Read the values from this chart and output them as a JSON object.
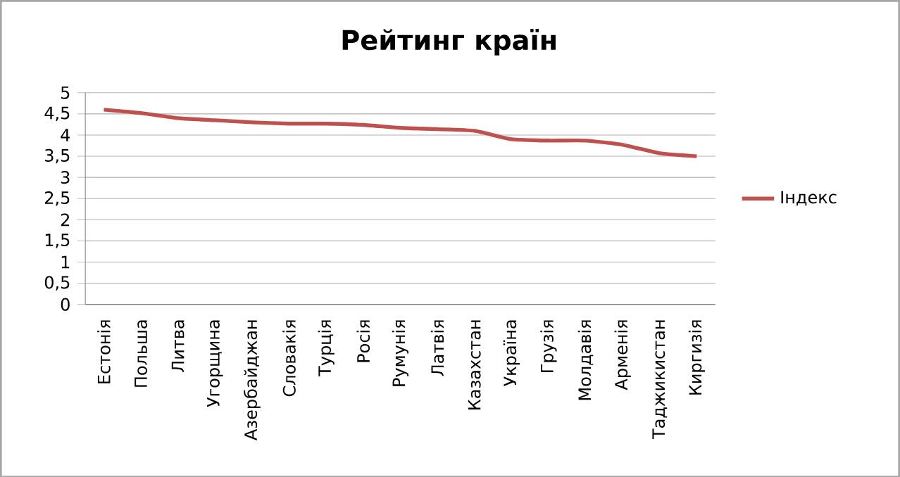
{
  "chart_data": {
    "type": "line",
    "title": "Рейтинг країн",
    "categories": [
      "Естонія",
      "Польша",
      "Литва",
      "Угорщина",
      "Азербайджан",
      "Словакія",
      "Турція",
      "Росія",
      "Румунія",
      "Латвія",
      "Казахстан",
      "Україна",
      "Грузія",
      "Молдавія",
      "Арменія",
      "Таджикистан",
      "Киргизія"
    ],
    "series": [
      {
        "name": "Індекс",
        "color": "#c0504d",
        "values": [
          4.6,
          4.52,
          4.4,
          4.35,
          4.3,
          4.27,
          4.27,
          4.24,
          4.17,
          4.14,
          4.1,
          3.9,
          3.87,
          3.87,
          3.77,
          3.57,
          3.5
        ]
      }
    ],
    "ylim": [
      0,
      5
    ],
    "yticks": [
      {
        "value": 0,
        "label": "0"
      },
      {
        "value": 0.5,
        "label": "0,5"
      },
      {
        "value": 1,
        "label": "1"
      },
      {
        "value": 1.5,
        "label": "1,5"
      },
      {
        "value": 2,
        "label": "2"
      },
      {
        "value": 2.5,
        "label": "2,5"
      },
      {
        "value": 3,
        "label": "3"
      },
      {
        "value": 3.5,
        "label": "3,5"
      },
      {
        "value": 4,
        "label": "4"
      },
      {
        "value": 4.5,
        "label": "4,5"
      },
      {
        "value": 5,
        "label": "5"
      }
    ],
    "grid": "y",
    "legend": "right",
    "marker": "none",
    "line_style": "solid"
  }
}
